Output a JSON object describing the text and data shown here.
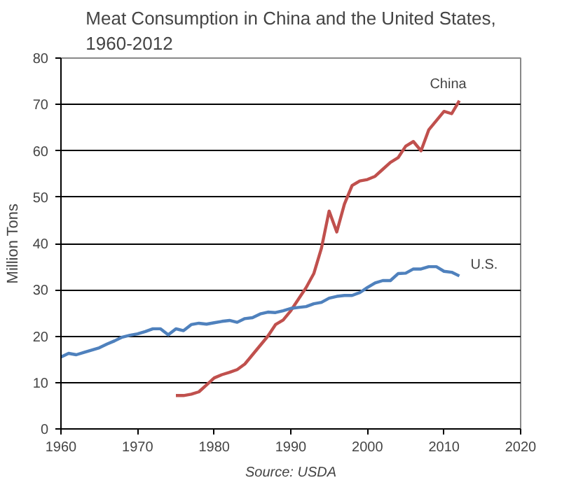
{
  "chart_data": {
    "type": "line",
    "title": "Meat Consumption in China and the United States,\n1960-2012",
    "ylabel": "Million Tons",
    "annotations": [
      "Source: USDA"
    ],
    "xlim": [
      1960,
      2020
    ],
    "xticks": [
      1960,
      1970,
      1980,
      1990,
      2000,
      2010,
      2020
    ],
    "ylim": [
      0,
      80
    ],
    "yticks": [
      0,
      10,
      20,
      30,
      40,
      50,
      60,
      70,
      80
    ],
    "grid": "y",
    "legend": false,
    "series": [
      {
        "name": "China",
        "color": "#c0504d",
        "x": [
          1975,
          1976,
          1977,
          1978,
          1979,
          1980,
          1981,
          1982,
          1983,
          1984,
          1985,
          1986,
          1987,
          1988,
          1989,
          1990,
          1991,
          1992,
          1993,
          1994,
          1995,
          1996,
          1997,
          1998,
          1999,
          2000,
          2001,
          2002,
          2003,
          2004,
          2005,
          2006,
          2007,
          2008,
          2009,
          2010,
          2011,
          2012
        ],
        "values": [
          7.2,
          7.2,
          7.5,
          8,
          9.5,
          11,
          11.7,
          12.2,
          12.8,
          14,
          16,
          18,
          20,
          22.5,
          23.5,
          25.5,
          28,
          30.5,
          33.5,
          39,
          47,
          42.5,
          48.5,
          52.5,
          53.5,
          53.8,
          54.5,
          56,
          57.5,
          58.5,
          61,
          62,
          60,
          64.5,
          66.5,
          68.5,
          68,
          70.8
        ]
      },
      {
        "name": "U.S.",
        "color": "#4f81bd",
        "x": [
          1960,
          1961,
          1962,
          1963,
          1964,
          1965,
          1966,
          1967,
          1968,
          1969,
          1970,
          1971,
          1972,
          1973,
          1974,
          1975,
          1976,
          1977,
          1978,
          1979,
          1980,
          1981,
          1982,
          1983,
          1984,
          1985,
          1986,
          1987,
          1988,
          1989,
          1990,
          1991,
          1992,
          1993,
          1994,
          1995,
          1996,
          1997,
          1998,
          1999,
          2000,
          2001,
          2002,
          2003,
          2004,
          2005,
          2006,
          2007,
          2008,
          2009,
          2010,
          2011,
          2012
        ],
        "values": [
          15.5,
          16.3,
          16,
          16.5,
          17,
          17.5,
          18.3,
          19,
          19.8,
          20.2,
          20.5,
          21,
          21.6,
          21.6,
          20.3,
          21.6,
          21.2,
          22.5,
          22.8,
          22.6,
          22.9,
          23.2,
          23.4,
          23,
          23.8,
          24,
          24.8,
          25.2,
          25.1,
          25.5,
          26,
          26.2,
          26.4,
          27,
          27.3,
          28.2,
          28.6,
          28.8,
          28.8,
          29.4,
          30.5,
          31.5,
          32,
          32,
          33.5,
          33.6,
          34.5,
          34.5,
          35,
          35,
          34,
          33.8,
          33
        ]
      }
    ]
  }
}
